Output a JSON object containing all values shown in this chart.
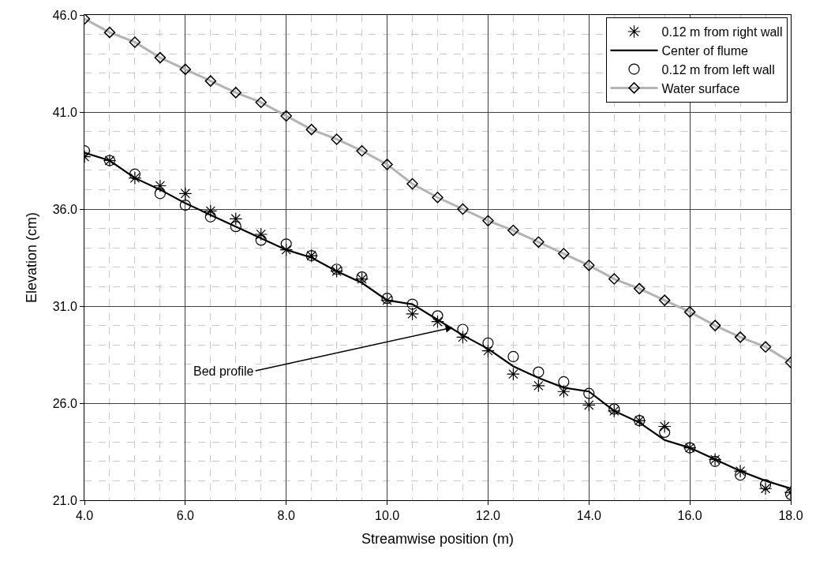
{
  "chart_data": {
    "type": "line",
    "xlabel": "Streamwise position (m)",
    "ylabel": "Elevation (cm)",
    "x": [
      4,
      4.5,
      5,
      5.5,
      6,
      6.5,
      7,
      7.5,
      8,
      8.5,
      9,
      9.5,
      10,
      10.5,
      11,
      11.5,
      12,
      12.5,
      13,
      13.5,
      14,
      14.5,
      15,
      15.5,
      16,
      16.5,
      17,
      17.5,
      18
    ],
    "series": [
      {
        "name": "0.12 m from right wall",
        "type": "scatter",
        "marker": "cross",
        "color": "#000000",
        "values": [
          38.7,
          38.5,
          37.6,
          37.2,
          36.8,
          35.9,
          35.5,
          34.7,
          33.9,
          33.6,
          32.8,
          32.4,
          31.3,
          30.6,
          30.2,
          29.4,
          28.7,
          27.5,
          26.9,
          26.6,
          25.9,
          25.6,
          25.1,
          24.8,
          23.7,
          23.1,
          22.5,
          21.6,
          21.4
        ]
      },
      {
        "name": "Center of flume",
        "marker": "none",
        "line_style": "solid",
        "color": "#000000",
        "values": [
          38.9,
          38.5,
          37.6,
          37.0,
          36.3,
          35.7,
          35.1,
          34.5,
          33.9,
          33.5,
          32.8,
          32.2,
          31.3,
          31.1,
          30.3,
          29.5,
          28.8,
          27.9,
          27.3,
          26.8,
          26.6,
          25.6,
          25.0,
          24.1,
          23.7,
          23.1,
          22.5,
          22.0,
          21.6
        ]
      },
      {
        "name": "0.12 m from left wall",
        "type": "scatter",
        "marker": "circle",
        "color": "#000000",
        "values": [
          39.0,
          38.5,
          37.8,
          36.8,
          36.2,
          35.6,
          35.1,
          34.4,
          34.2,
          33.6,
          32.9,
          32.5,
          31.4,
          31.1,
          30.5,
          29.8,
          29.1,
          28.4,
          27.6,
          27.1,
          26.5,
          25.7,
          25.1,
          24.5,
          23.7,
          23.0,
          22.3,
          21.8,
          21.3
        ]
      },
      {
        "name": "Water surface",
        "marker": "diamond",
        "line_style": "solid",
        "color": "#b3b3b3",
        "values": [
          45.8,
          45.1,
          44.6,
          43.8,
          43.2,
          42.6,
          42.0,
          41.5,
          40.8,
          40.1,
          39.6,
          39.0,
          38.3,
          37.3,
          36.6,
          36.0,
          35.4,
          34.9,
          34.3,
          33.7,
          33.1,
          32.4,
          31.9,
          31.3,
          30.7,
          30.0,
          29.4,
          28.9,
          28.1
        ]
      }
    ],
    "xlim": [
      4,
      18
    ],
    "xticks": [
      {
        "value": 4,
        "label": "4.0"
      },
      {
        "value": 6,
        "label": "6.0"
      },
      {
        "value": 8,
        "label": "8.0"
      },
      {
        "value": 10,
        "label": "10.0"
      },
      {
        "value": 12,
        "label": "12.0"
      },
      {
        "value": 14,
        "label": "14.0"
      },
      {
        "value": 16,
        "label": "16.0"
      },
      {
        "value": 18,
        "label": "18.0"
      }
    ],
    "ylim": [
      21,
      46
    ],
    "yticks": [
      {
        "value": 21,
        "label": "21.0"
      },
      {
        "value": 26,
        "label": "26.0"
      },
      {
        "value": 31,
        "label": "31.0"
      },
      {
        "value": 36,
        "label": "36.0"
      },
      {
        "value": 41,
        "label": "41.0"
      },
      {
        "value": 46,
        "label": "46.0"
      }
    ],
    "grid": true,
    "legend": "top right",
    "annotations": [
      {
        "text": "Bed profile",
        "x": 11.3,
        "y": 29.9
      }
    ]
  }
}
